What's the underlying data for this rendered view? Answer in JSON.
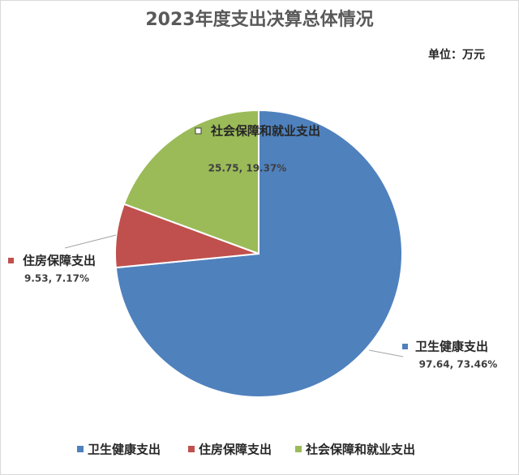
{
  "chart_data": {
    "type": "pie",
    "title": "2023年度支出决算总体情况",
    "unit": "单位：万元",
    "categories": [
      "卫生健康支出",
      "住房保障支出",
      "社会保障和就业支出"
    ],
    "values": [
      97.64,
      9.53,
      25.75
    ],
    "value_labels": [
      "97.64, 73.46%",
      "9.53, 7.17%",
      "25.75, 19.37%"
    ],
    "colors": [
      "#4f81bd",
      "#c0504d",
      "#9bbb59"
    ],
    "legend": "bottom"
  }
}
